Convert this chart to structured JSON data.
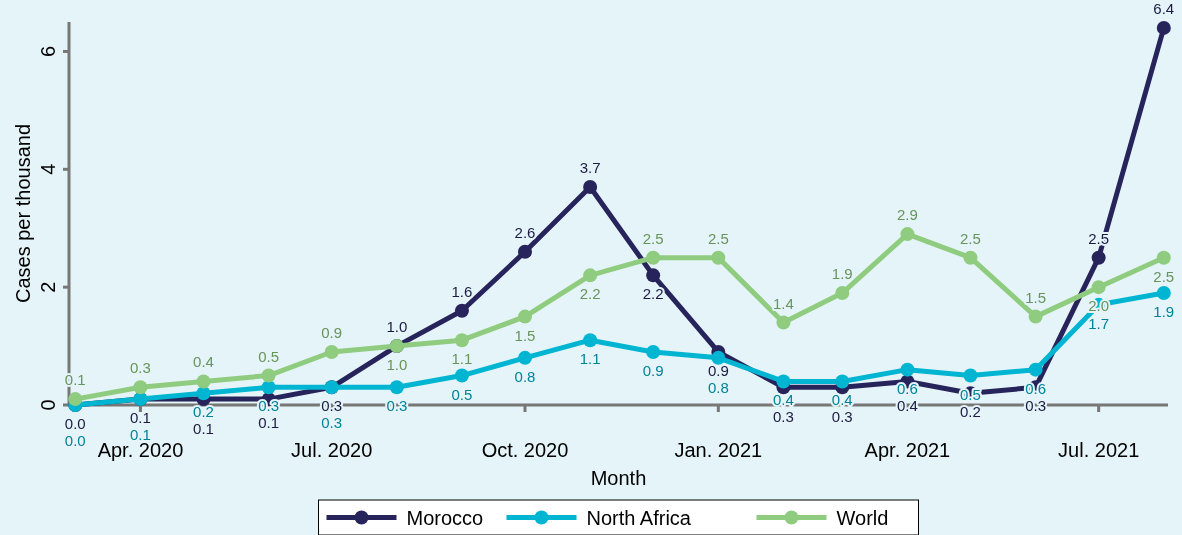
{
  "chart_data": {
    "type": "line",
    "xlabel": "Month",
    "ylabel": "Cases per thousand",
    "x": [
      "2020-03",
      "2020-04",
      "2020-05",
      "2020-06",
      "2020-07",
      "2020-08",
      "2020-09",
      "2020-10",
      "2020-11",
      "2020-12",
      "2021-01",
      "2021-02",
      "2021-03",
      "2021-04",
      "2021-05",
      "2021-06",
      "2021-07",
      "2021-08"
    ],
    "series": [
      {
        "name": "Morocco",
        "color": "#27245c",
        "values": [
          0.0,
          0.1,
          0.1,
          0.1,
          0.3,
          1.0,
          1.6,
          2.6,
          3.7,
          2.2,
          0.9,
          0.3,
          0.3,
          0.4,
          0.2,
          0.3,
          2.5,
          6.4
        ],
        "value_labels": [
          "0.0",
          "0.1",
          "0.1",
          "0.1",
          "0.3",
          "1.0",
          "1.6",
          "2.6",
          "3.7",
          "2.2",
          "0.9",
          "0.3",
          "0.3",
          "0.4",
          "0.2",
          "0.3",
          "2.5",
          "6.4"
        ]
      },
      {
        "name": "North Africa",
        "color": "#00b5d1",
        "values": [
          0.0,
          0.1,
          0.2,
          0.3,
          0.3,
          0.3,
          0.5,
          0.8,
          1.1,
          0.9,
          0.8,
          0.4,
          0.4,
          0.6,
          0.5,
          0.6,
          1.7,
          1.9
        ],
        "value_labels": [
          "0.0",
          "0.1",
          "0.2",
          "0.3",
          "0.3",
          "0.3",
          "0.5",
          "0.8",
          "1.1",
          "0.9",
          "0.8",
          "0.4",
          "0.4",
          "0.6",
          "0.5",
          "0.6",
          "1.7",
          "1.9"
        ]
      },
      {
        "name": "World",
        "color": "#90cc7f",
        "values": [
          0.1,
          0.3,
          0.4,
          0.5,
          0.9,
          1.0,
          1.1,
          1.5,
          2.2,
          2.5,
          2.5,
          1.4,
          1.9,
          2.9,
          2.5,
          1.5,
          2.0,
          2.5
        ],
        "value_labels": [
          "0.1",
          "0.3",
          "0.4",
          "0.5",
          "0.9",
          "1.0",
          "1.1",
          "1.5",
          "2.2",
          "2.5",
          "2.5",
          "1.4",
          "1.9",
          "2.9",
          "2.5",
          "1.5",
          "2.0",
          "2.5"
        ]
      }
    ],
    "xlim": [
      "2020-02-27",
      "2021-08-03"
    ],
    "xticks": [
      {
        "value": "2020-04",
        "label": "Apr. 2020"
      },
      {
        "value": "2020-07",
        "label": "Jul. 2020"
      },
      {
        "value": "2020-10",
        "label": "Oct. 2020"
      },
      {
        "value": "2021-01",
        "label": "Jan. 2021"
      },
      {
        "value": "2021-04",
        "label": "Apr. 2021"
      },
      {
        "value": "2021-07",
        "label": "Jul. 2021"
      }
    ],
    "ylim": [
      0,
      6.5
    ],
    "yticks": [
      0,
      2,
      4,
      6
    ],
    "marker": "circle",
    "line_style": "solid",
    "grid": false,
    "legend": "bottom"
  }
}
